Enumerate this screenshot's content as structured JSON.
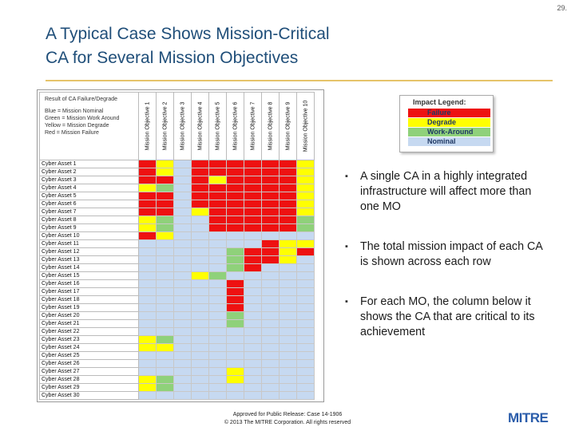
{
  "page_number": "29.",
  "title_line1": "A Typical Case Shows Mission-Critical",
  "title_line2": "CA for Several Mission Objectives",
  "matrix": {
    "corner": {
      "title": "Result of CA Failure/Degrade",
      "lines": [
        "Blue = Mission Nominal",
        "Green = Mission Work Around",
        "Yellow = Mission Degrade",
        "Red = Mission Failure"
      ]
    },
    "columns": [
      "Mission Objective 1",
      "Mission Objective 2",
      "Mission Objective 3",
      "Mission Objective 4",
      "Mission Objective 5",
      "Mission Objective 6",
      "Mission Objective 7",
      "Mission Objective 8",
      "Mission Objective 9",
      "Mission Objective 10"
    ],
    "rows": [
      {
        "label": "Cyber Asset 1",
        "cells": [
          "F",
          "D",
          "N",
          "F",
          "F",
          "F",
          "F",
          "F",
          "F",
          "D"
        ]
      },
      {
        "label": "Cyber Asset 2",
        "cells": [
          "F",
          "D",
          "N",
          "F",
          "F",
          "F",
          "F",
          "F",
          "F",
          "D"
        ]
      },
      {
        "label": "Cyber Asset 3",
        "cells": [
          "F",
          "F",
          "N",
          "F",
          "D",
          "F",
          "F",
          "F",
          "F",
          "D"
        ]
      },
      {
        "label": "Cyber Asset 4",
        "cells": [
          "D",
          "W",
          "N",
          "F",
          "F",
          "F",
          "F",
          "F",
          "F",
          "D"
        ]
      },
      {
        "label": "Cyber Asset 5",
        "cells": [
          "F",
          "F",
          "N",
          "F",
          "F",
          "F",
          "F",
          "F",
          "F",
          "D"
        ]
      },
      {
        "label": "Cyber Asset 6",
        "cells": [
          "F",
          "F",
          "N",
          "F",
          "F",
          "F",
          "F",
          "F",
          "F",
          "D"
        ]
      },
      {
        "label": "Cyber Asset 7",
        "cells": [
          "F",
          "F",
          "N",
          "D",
          "F",
          "F",
          "F",
          "F",
          "F",
          "D"
        ]
      },
      {
        "label": "Cyber Asset 8",
        "cells": [
          "D",
          "W",
          "N",
          "N",
          "F",
          "F",
          "F",
          "F",
          "F",
          "W"
        ]
      },
      {
        "label": "Cyber Asset 9",
        "cells": [
          "D",
          "W",
          "N",
          "N",
          "F",
          "F",
          "F",
          "F",
          "F",
          "W"
        ]
      },
      {
        "label": "Cyber Asset 10",
        "cells": [
          "F",
          "D",
          "N",
          "N",
          "N",
          "N",
          "N",
          "N",
          "N",
          "N"
        ]
      },
      {
        "label": "Cyber Asset 11",
        "cells": [
          "N",
          "N",
          "N",
          "N",
          "N",
          "N",
          "N",
          "F",
          "D",
          "D"
        ]
      },
      {
        "label": "Cyber Asset 12",
        "cells": [
          "N",
          "N",
          "N",
          "N",
          "N",
          "W",
          "F",
          "F",
          "D",
          "F"
        ]
      },
      {
        "label": "Cyber Asset 13",
        "cells": [
          "N",
          "N",
          "N",
          "N",
          "N",
          "W",
          "F",
          "F",
          "D",
          "N"
        ]
      },
      {
        "label": "Cyber Asset 14",
        "cells": [
          "N",
          "N",
          "N",
          "N",
          "N",
          "W",
          "F",
          "N",
          "N",
          "N"
        ]
      },
      {
        "label": "Cyber Asset 15",
        "cells": [
          "N",
          "N",
          "N",
          "D",
          "W",
          "N",
          "N",
          "N",
          "N",
          "N"
        ]
      },
      {
        "label": "Cyber Asset 16",
        "cells": [
          "N",
          "N",
          "N",
          "N",
          "N",
          "F",
          "N",
          "N",
          "N",
          "N"
        ]
      },
      {
        "label": "Cyber Asset 17",
        "cells": [
          "N",
          "N",
          "N",
          "N",
          "N",
          "F",
          "N",
          "N",
          "N",
          "N"
        ]
      },
      {
        "label": "Cyber Asset 18",
        "cells": [
          "N",
          "N",
          "N",
          "N",
          "N",
          "F",
          "N",
          "N",
          "N",
          "N"
        ]
      },
      {
        "label": "Cyber Asset 19",
        "cells": [
          "N",
          "N",
          "N",
          "N",
          "N",
          "F",
          "N",
          "N",
          "N",
          "N"
        ]
      },
      {
        "label": "Cyber Asset 20",
        "cells": [
          "N",
          "N",
          "N",
          "N",
          "N",
          "W",
          "N",
          "N",
          "N",
          "N"
        ]
      },
      {
        "label": "Cyber Asset 21",
        "cells": [
          "N",
          "N",
          "N",
          "N",
          "N",
          "W",
          "N",
          "N",
          "N",
          "N"
        ]
      },
      {
        "label": "Cyber Asset 22",
        "cells": [
          "N",
          "N",
          "N",
          "N",
          "N",
          "N",
          "N",
          "N",
          "N",
          "N"
        ]
      },
      {
        "label": "Cyber Asset 23",
        "cells": [
          "D",
          "W",
          "N",
          "N",
          "N",
          "N",
          "N",
          "N",
          "N",
          "N"
        ]
      },
      {
        "label": "Cyber Asset 24",
        "cells": [
          "D",
          "D",
          "N",
          "N",
          "N",
          "N",
          "N",
          "N",
          "N",
          "N"
        ]
      },
      {
        "label": "Cyber Asset 25",
        "cells": [
          "N",
          "N",
          "N",
          "N",
          "N",
          "N",
          "N",
          "N",
          "N",
          "N"
        ]
      },
      {
        "label": "Cyber Asset 26",
        "cells": [
          "N",
          "N",
          "N",
          "N",
          "N",
          "N",
          "N",
          "N",
          "N",
          "N"
        ]
      },
      {
        "label": "Cyber Asset 27",
        "cells": [
          "N",
          "N",
          "N",
          "N",
          "N",
          "D",
          "N",
          "N",
          "N",
          "N"
        ]
      },
      {
        "label": "Cyber Asset 28",
        "cells": [
          "D",
          "W",
          "N",
          "N",
          "N",
          "D",
          "N",
          "N",
          "N",
          "N"
        ]
      },
      {
        "label": "Cyber Asset 29",
        "cells": [
          "D",
          "W",
          "N",
          "N",
          "N",
          "N",
          "N",
          "N",
          "N",
          "N"
        ]
      },
      {
        "label": "Cyber Asset 30",
        "cells": [
          "N",
          "N",
          "N",
          "N",
          "N",
          "N",
          "N",
          "N",
          "N",
          "N"
        ]
      }
    ]
  },
  "legend": {
    "title": "Impact Legend:",
    "items": [
      {
        "label": "Failure",
        "color": "#ee1111"
      },
      {
        "label": "Degrade",
        "color": "#ffff00"
      },
      {
        "label": "Work-Around",
        "color": "#8fd17a"
      },
      {
        "label": "Nominal",
        "color": "#c6d9f1"
      }
    ]
  },
  "bullets": [
    "A single CA in a highly integrated infrastructure will affect more than one MO",
    "The total mission impact of each CA is shown across each row",
    "For each MO, the column below it shows the CA that are critical to its achievement"
  ],
  "footer_line1": "Approved for Public Release:  Case 14-1906",
  "footer_line2": "© 2013 The MITRE Corporation. All rights reserved",
  "logo_text": "MITRE",
  "colors": {
    "title": "#1f4e79",
    "rule": "#e6c46a",
    "logo": "#2a5caa"
  }
}
